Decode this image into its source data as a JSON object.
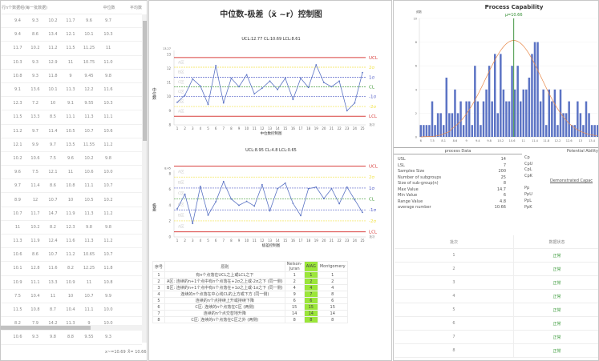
{
  "left_table": {
    "header_group": "行n个数据组(每一批数据)",
    "header_median": "中位数",
    "header_mean": "平均数",
    "rows": [
      [
        "9.4",
        "9.3",
        "10.2",
        "11.7",
        "9.6",
        "9.7"
      ],
      [
        "9.4",
        "8.6",
        "13.4",
        "12.1",
        "10.1",
        "10.3"
      ],
      [
        "11.7",
        "10.2",
        "11.2",
        "11.5",
        "11.25",
        "11"
      ],
      [
        "10.3",
        "9.3",
        "12.9",
        "11",
        "10.75",
        "11.0"
      ],
      [
        "10.8",
        "9.3",
        "11.8",
        "9",
        "9.45",
        "9.8"
      ],
      [
        "9.1",
        "13.6",
        "10.1",
        "11.3",
        "12.2",
        "11.6"
      ],
      [
        "12.3",
        "7.2",
        "10",
        "9.1",
        "9.55",
        "10.3"
      ],
      [
        "11.5",
        "13.3",
        "8.5",
        "11.1",
        "11.3",
        "11.1"
      ],
      [
        "11.2",
        "9.7",
        "11.4",
        "10.5",
        "10.7",
        "10.6"
      ],
      [
        "12.1",
        "9.9",
        "9.7",
        "13.5",
        "11.55",
        "11.2"
      ],
      [
        "10.2",
        "10.6",
        "7.5",
        "9.6",
        "10.2",
        "9.8"
      ],
      [
        "9.6",
        "7.5",
        "12.1",
        "11",
        "10.6",
        "10.0"
      ],
      [
        "9.7",
        "11.4",
        "8.6",
        "10.8",
        "11.1",
        "10.7"
      ],
      [
        "8.9",
        "12",
        "10.7",
        "10",
        "10.5",
        "10.2"
      ],
      [
        "10.7",
        "11.7",
        "14.7",
        "11.9",
        "11.3",
        "11.2"
      ],
      [
        "11",
        "10.2",
        "8.2",
        "12.3",
        "9.8",
        "9.8"
      ],
      [
        "11.3",
        "11.9",
        "12.4",
        "11.6",
        "11.3",
        "11.2"
      ],
      [
        "10.6",
        "8.6",
        "10.7",
        "11.2",
        "10.65",
        "10.7"
      ],
      [
        "10.1",
        "12.8",
        "11.6",
        "8.2",
        "12.25",
        "11.8"
      ],
      [
        "10.9",
        "11.1",
        "13.3",
        "10.9",
        "11",
        "10.8"
      ],
      [
        "7.5",
        "10.4",
        "11",
        "10",
        "10.7",
        "9.9"
      ],
      [
        "11.5",
        "10.8",
        "8.7",
        "10.4",
        "11.1",
        "10.0"
      ],
      [
        "8.2",
        "7.9",
        "14.2",
        "11.3",
        "9",
        "10.0"
      ],
      [
        "10.6",
        "9.3",
        "9.8",
        "8.8",
        "9.55",
        "9.3"
      ]
    ],
    "median_stat": "x~=10.69",
    "mean_stat": "X̄= 10.66"
  },
  "chart_data": [
    {
      "type": "line",
      "title": "中位数-极差（x̃ ~r）控制图",
      "subtitle": "UCL:12.77   CL:10.69   LCL:8.61",
      "ylabel": "中位数",
      "xlabel": "中位数控制图",
      "x_unit": "批次",
      "ylim": [
        8,
        13.27
      ],
      "yticks": [
        8,
        9,
        10,
        11,
        12,
        13
      ],
      "ytop_label": "13.27",
      "x": [
        1,
        2,
        3,
        4,
        5,
        6,
        7,
        8,
        9,
        10,
        11,
        12,
        13,
        14,
        15,
        16,
        17,
        18,
        19,
        20,
        21,
        22,
        23,
        24,
        25
      ],
      "values": [
        9.6,
        10.1,
        11.25,
        10.75,
        9.45,
        12.2,
        9.55,
        11.3,
        10.7,
        11.55,
        10.2,
        10.6,
        11.1,
        10.5,
        11.3,
        9.8,
        11.3,
        10.65,
        12.25,
        11,
        10.7,
        11.1,
        9,
        9.55,
        11.7
      ],
      "limits": [
        {
          "label": "UCL",
          "value": 12.77,
          "color": "#d9413f"
        },
        {
          "label": "2σ",
          "value": 12.08,
          "color": "#f2e34a"
        },
        {
          "label": "1σ",
          "value": 11.38,
          "color": "#5560c8"
        },
        {
          "label": "CL",
          "value": 10.69,
          "color": "#4a9e3f"
        },
        {
          "label": "-1σ",
          "value": 10.0,
          "color": "#5560c8"
        },
        {
          "label": "-2σ",
          "value": 9.3,
          "color": "#f2e34a"
        },
        {
          "label": "LCL",
          "value": 8.61,
          "color": "#d9413f"
        }
      ],
      "zones": [
        "A区",
        "B区",
        "C区",
        "C区",
        "B区",
        "A区"
      ],
      "line_color": "#5b73c4"
    },
    {
      "type": "line",
      "subtitle": "UCL:8.95   CL:4.8   LCL:0.65",
      "ylabel": "极差",
      "xlabel": "极差控制图",
      "x_unit": "批次",
      "ylim": [
        0,
        8.45
      ],
      "yticks": [
        0,
        2,
        4,
        6,
        8
      ],
      "ytop_label": "8.45",
      "x": [
        1,
        2,
        3,
        4,
        5,
        6,
        7,
        8,
        9,
        10,
        11,
        12,
        13,
        14,
        15,
        16,
        17,
        18,
        19,
        20,
        21,
        22,
        23,
        24,
        25
      ],
      "values": [
        3.55,
        5.4,
        1.7,
        6.4,
        2.75,
        4.45,
        7.0,
        4.8,
        4.0,
        4.5,
        3.9,
        6.6,
        3.3,
        6.1,
        6.8,
        4.25,
        2.7,
        6.1,
        6.3,
        4.85,
        6.1,
        4.2,
        6.3,
        4.7,
        3.1
      ],
      "limits": [
        {
          "label": "UCL",
          "value": 8.95,
          "color": "#d9413f"
        },
        {
          "label": "2σ",
          "value": 7.57,
          "color": "#f2e34a"
        },
        {
          "label": "1σ",
          "value": 6.18,
          "color": "#5560c8"
        },
        {
          "label": "CL",
          "value": 4.8,
          "color": "#4a9e3f"
        },
        {
          "label": "-1σ",
          "value": 3.42,
          "color": "#5560c8"
        },
        {
          "label": "-2σ",
          "value": 2.03,
          "color": "#f2e34a"
        },
        {
          "label": "LCL",
          "value": 0.65,
          "color": "#d9413f"
        }
      ],
      "zones": [
        "A区",
        "B区",
        "C区",
        "C区",
        "B区",
        "A区"
      ],
      "line_color": "#5b73c4"
    },
    {
      "type": "bar",
      "title": "Process Capability",
      "mean_label": "μ=10.66",
      "mean": 10.66,
      "ylabel": "频数",
      "ylim": [
        0,
        10
      ],
      "yticks": [
        0,
        2,
        4,
        6,
        8,
        10
      ],
      "categories": [
        6,
        7.2,
        7.3,
        7.4,
        7.5,
        7.6,
        7.8,
        7.9,
        8.1,
        8.2,
        8.3,
        8.5,
        8.6,
        8.7,
        8.8,
        8.9,
        9,
        9.1,
        9.2,
        9.3,
        9.4,
        9.5,
        9.6,
        9.7,
        9.8,
        9.9,
        10,
        10.1,
        10.2,
        10.3,
        10.4,
        10.5,
        10.6,
        10.7,
        10.8,
        10.9,
        11,
        11.1,
        11.2,
        11.3,
        11.4,
        11.5,
        11.6,
        11.7,
        11.8,
        11.9,
        12,
        12.1,
        12.2,
        12.3,
        12.4,
        12.5,
        12.6,
        12.7,
        12.8,
        12.9,
        13,
        13.1,
        13.2,
        13.3,
        13.4,
        13.5,
        13.6
      ],
      "xtick_labels": [
        "6",
        "7.5",
        "8.1",
        "8.6",
        "9",
        "9.4",
        "9.8",
        "10.2",
        "10.6",
        "11",
        "11.4",
        "11.8",
        "12.2",
        "12.6",
        "13",
        "13.4"
      ],
      "values": [
        1,
        1,
        1,
        1,
        3,
        1,
        2,
        2,
        1,
        5,
        2,
        2,
        4,
        2,
        3,
        1,
        3,
        3,
        1,
        6,
        3,
        1,
        3,
        4,
        6,
        3,
        7,
        2,
        7,
        4,
        3,
        3,
        6,
        4,
        6,
        3,
        4,
        4,
        5,
        7,
        8,
        8,
        3,
        4,
        1,
        4,
        3,
        4,
        1,
        4,
        2,
        2,
        3,
        1,
        1,
        3,
        2,
        1,
        3,
        2,
        1,
        1,
        1
      ],
      "normal_curve": {
        "mean": 10.66,
        "std": 0.98,
        "color": "#e8894a"
      },
      "bar_color": "#5b73c4",
      "mean_line_color": "#2e8b2e"
    }
  ],
  "rules_table": {
    "headers": [
      "序号",
      "原则",
      "Nelson-Juran",
      "AIAG",
      "Montgomery"
    ],
    "rows": [
      [
        "1",
        "有n个点落在UCL之上或LCL之下",
        "1",
        "1",
        "1"
      ],
      [
        "2",
        "A区: 连续的n+1个点中有n个点落在+2σ之上或-2σ之下 (同一侧)",
        "2",
        "2",
        "2"
      ],
      [
        "3",
        "B区: 连续的n+1个点中有n个点落在+1σ之上或-1σ之下 (同一侧)",
        "4",
        "4",
        "4"
      ],
      [
        "4",
        "连续的n个点落在中心线CL的上方或下方 (同一侧)",
        "9",
        "7",
        "8"
      ],
      [
        "5",
        "连续的n个点持续上升或持续下降",
        "6",
        "6",
        "6"
      ],
      [
        "6",
        "C区: 连续的n个点落在C区 (两侧)",
        "15",
        "15",
        "15"
      ],
      [
        "7",
        "连续的n个点交替地升降",
        "14",
        "14",
        "14"
      ],
      [
        "8",
        "C区: 连续的n个点落在C区之外 (两侧)",
        "8",
        "8",
        "8"
      ]
    ]
  },
  "process_data": {
    "title": "process Data",
    "potential_title": "Potential Ability",
    "demonstrated_title": "Demonstrated Capac",
    "rows": [
      [
        "USL",
        "14"
      ],
      [
        "LSL",
        "7"
      ],
      [
        "Samples Size",
        "200"
      ],
      [
        "Number of subgroups",
        "25"
      ],
      [
        "Size of sub-group(n)",
        "8"
      ],
      [
        "Max Value",
        "14.7"
      ],
      [
        "Min Value",
        "6"
      ],
      [
        "Range Value",
        "4.8"
      ],
      [
        "average number",
        "10.66"
      ]
    ],
    "potential": [
      "Cp",
      "CpU",
      "CpL",
      "CpK"
    ],
    "demonstrated": [
      "Pp",
      "PpU",
      "PpL",
      "PpK"
    ]
  },
  "batch_table": {
    "headers": [
      "批次",
      "数据状态"
    ],
    "rows": [
      [
        "1",
        "正常"
      ],
      [
        "2",
        "正常"
      ],
      [
        "3",
        "正常"
      ],
      [
        "4",
        "正常"
      ],
      [
        "5",
        "正常"
      ],
      [
        "6",
        "正常"
      ],
      [
        "7",
        "正常"
      ],
      [
        "8",
        "正常"
      ]
    ],
    "status_color": "#3a9a3a"
  }
}
